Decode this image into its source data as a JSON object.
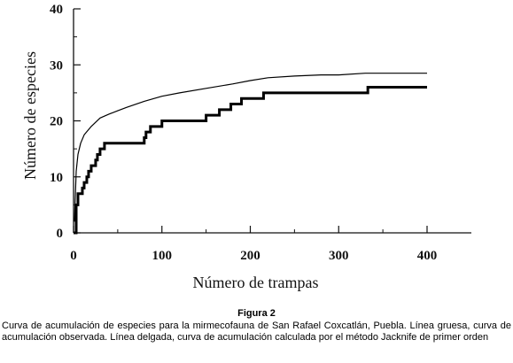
{
  "chart_data": {
    "type": "line",
    "xlabel": "Número de trampas",
    "ylabel": "Número de especies",
    "xlim": [
      0,
      400
    ],
    "ylim": [
      0,
      40
    ],
    "x_ticks": [
      "0",
      "100",
      "200",
      "300",
      "400"
    ],
    "y_ticks": [
      "0",
      "10",
      "20",
      "30",
      "40"
    ],
    "grid": false,
    "series": [
      {
        "style": "thick-step",
        "x": [
          1,
          3,
          5,
          10,
          12,
          15,
          17,
          20,
          25,
          27,
          30,
          33,
          35,
          40,
          80,
          82,
          85,
          87,
          90,
          95,
          100,
          150,
          155,
          165,
          172,
          178,
          180,
          190,
          195,
          215,
          330,
          333,
          400
        ],
        "y": [
          0,
          5,
          7,
          8,
          9,
          10,
          11,
          12,
          13,
          14,
          15,
          15,
          16,
          16,
          17,
          18,
          18,
          19,
          19,
          19,
          20,
          21,
          21,
          22,
          22,
          23,
          23,
          24,
          24,
          25,
          25,
          26,
          26
        ]
      },
      {
        "style": "thin-smooth",
        "x": [
          1,
          3,
          5,
          8,
          12,
          20,
          30,
          40,
          50,
          60,
          80,
          100,
          120,
          150,
          180,
          200,
          220,
          250,
          280,
          300,
          330,
          360,
          400
        ],
        "y": [
          2,
          11,
          14,
          16,
          17.5,
          19,
          20.5,
          21.2,
          21.8,
          22.4,
          23.5,
          24.4,
          25,
          25.8,
          26.6,
          27.2,
          27.7,
          28,
          28.2,
          28.2,
          28.5,
          28.5,
          28.5
        ]
      }
    ]
  },
  "caption": {
    "label": "Figura 2",
    "text": "Curva de acumulación de especies para la mirmecofauna de San Rafael Coxcatlán, Puebla. Línea gruesa, curva de acumulación observada. Línea delgada, curva de acumulación calculada por el método Jacknife de primer orden"
  }
}
